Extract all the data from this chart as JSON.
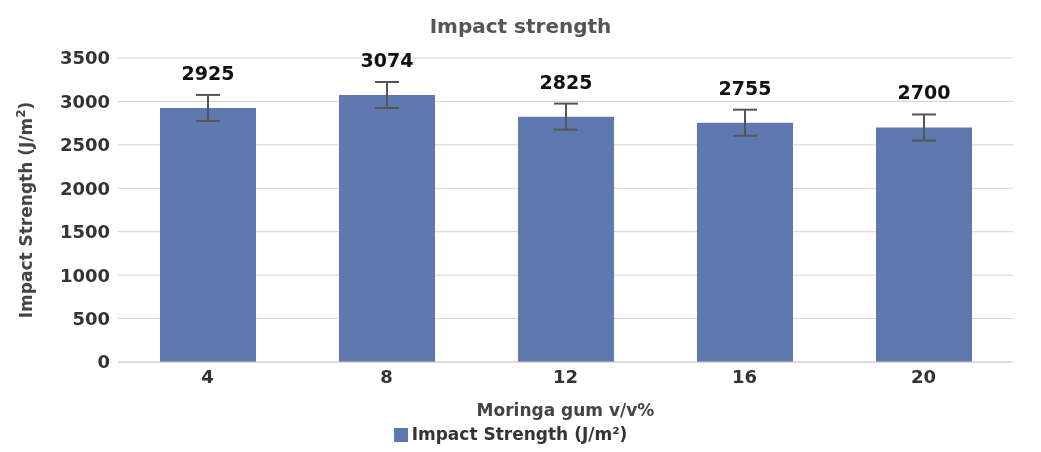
{
  "chart_data": {
    "type": "bar",
    "title": "Impact strength",
    "xlabel": "Moringa gum v/v%",
    "ylabel": "Impact Strength (J/m$^{2}$)",
    "categories": [
      "4",
      "8",
      "12",
      "16",
      "20"
    ],
    "series": [
      {
        "name": "Impact Strength (J/m²)",
        "color": "#6078b0",
        "values": [
          2925,
          3074,
          2825,
          2755,
          2700
        ],
        "errors": [
          150,
          150,
          150,
          150,
          150
        ]
      }
    ],
    "data_labels": true,
    "ylim": [
      0,
      3500
    ],
    "yticks": [
      0,
      500,
      1000,
      1500,
      2000,
      2500,
      3000,
      3500
    ],
    "grid": "y",
    "legend": "bottom"
  }
}
